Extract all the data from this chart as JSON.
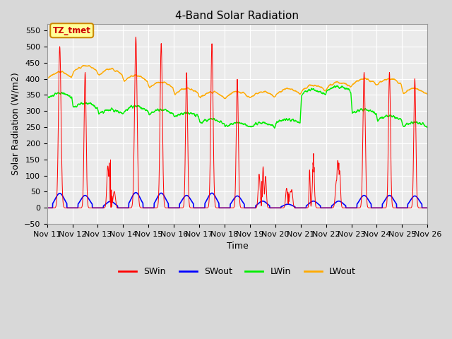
{
  "title": "4-Band Solar Radiation",
  "xlabel": "Time",
  "ylabel": "Solar Radiation (W/m2)",
  "ylim": [
    -50,
    570
  ],
  "yticks": [
    -50,
    0,
    50,
    100,
    150,
    200,
    250,
    300,
    350,
    400,
    450,
    500,
    550
  ],
  "background_color": "#d8d8d8",
  "plot_bg_color": "#ebebeb",
  "grid_color": "#ffffff",
  "annotation_text": "TZ_tmet",
  "annotation_bg": "#ffff99",
  "annotation_border": "#cc8800",
  "series_colors": {
    "SWin": "#ff0000",
    "SWout": "#0000ff",
    "LWin": "#00ee00",
    "LWout": "#ffaa00"
  },
  "n_days": 15,
  "start_day": 11,
  "seed": 42
}
